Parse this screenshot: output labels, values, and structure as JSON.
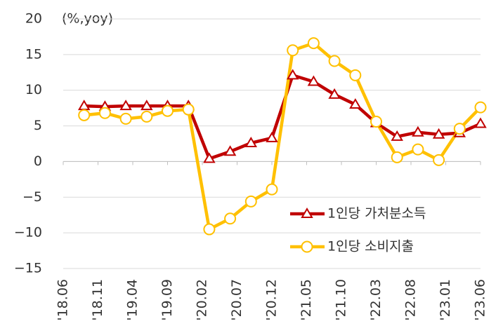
{
  "chart_data": {
    "type": "line",
    "y_axis_label": "(%,yoy)",
    "categories": [
      null,
      null,
      null,
      null,
      null,
      null,
      null,
      null,
      null,
      null,
      null,
      null,
      null,
      null,
      null,
      null,
      null,
      null,
      null,
      null
    ],
    "xlim": [
      -1,
      19
    ],
    "xticks": [
      {
        "value": -1,
        "label": "'18.06"
      },
      {
        "value": 0.667,
        "label": "'18.11"
      },
      {
        "value": 2.333,
        "label": "'19.04"
      },
      {
        "value": 4,
        "label": "'19.09"
      },
      {
        "value": 5.667,
        "label": "'20.02"
      },
      {
        "value": 7.333,
        "label": "'20.07"
      },
      {
        "value": 9,
        "label": "'20.12"
      },
      {
        "value": 10.667,
        "label": "'21.05"
      },
      {
        "value": 12.333,
        "label": "'21.10"
      },
      {
        "value": 14,
        "label": "'22.03"
      },
      {
        "value": 15.667,
        "label": "'22.08"
      },
      {
        "value": 17.333,
        "label": "'23.01"
      },
      {
        "value": 19,
        "label": "'23.06"
      }
    ],
    "ylim": [
      -15,
      20
    ],
    "yticks": [
      {
        "value": -15,
        "label": "−15"
      },
      {
        "value": -10,
        "label": "−10"
      },
      {
        "value": -5,
        "label": "−5"
      },
      0,
      5,
      10,
      15,
      20
    ],
    "grid": true,
    "series": [
      {
        "name": "1인당 가처분소득",
        "color": "#c00000",
        "marker": "triangle",
        "values": [
          7.8,
          7.7,
          7.8,
          7.8,
          7.8,
          7.8,
          0.4,
          1.4,
          2.6,
          3.3,
          12.1,
          11.2,
          9.4,
          8.0,
          5.4,
          3.5,
          4.1,
          3.8,
          4.0,
          5.3
        ]
      },
      {
        "name": "1인당 소비지출",
        "color": "#ffc000",
        "marker": "circle",
        "values": [
          6.5,
          6.8,
          6.0,
          6.3,
          7.1,
          7.3,
          -9.5,
          -8.0,
          -5.6,
          -3.9,
          15.6,
          16.6,
          14.1,
          12.1,
          5.6,
          0.6,
          1.7,
          0.2,
          4.6,
          7.6
        ]
      }
    ]
  }
}
